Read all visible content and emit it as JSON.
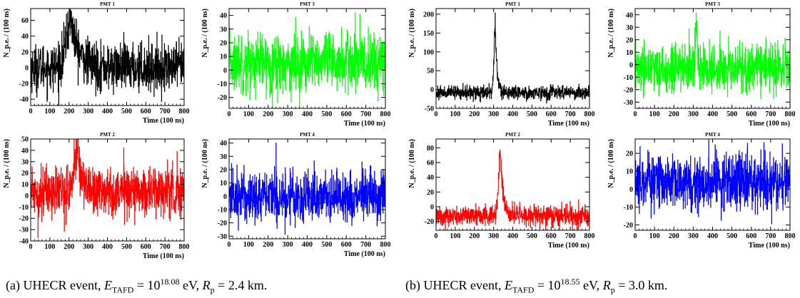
{
  "panels": [
    {
      "title": "PMT 1",
      "ylabel": "N_p.e. / (100 ns)",
      "xlabel": "Time (100 ns)",
      "color": "#000000"
    },
    {
      "title": "PMT 3",
      "ylabel": "N_p.e. / (100 ns)",
      "xlabel": "Time (100 ns)",
      "color": "#00ff00"
    },
    {
      "title": "PMT 2",
      "ylabel": "N_p.e. / (100 ns)",
      "xlabel": "Time (100 ns)",
      "color": "#ff0000"
    },
    {
      "title": "PMT 4",
      "ylabel": "N_p.e. / (100 ns)",
      "xlabel": "Time (100 ns)",
      "color": "#0000ff"
    },
    {
      "title": "PMT 1",
      "ylabel": "N_p.e. / (100 ns)",
      "xlabel": "Time (100 ns)",
      "color": "#000000"
    },
    {
      "title": "PMT 3",
      "ylabel": "N_p.e. / (100 ns)",
      "xlabel": "Time (100 ns)",
      "color": "#00ff00"
    },
    {
      "title": "PMT 2",
      "ylabel": "N_p.e. / (100 ns)",
      "xlabel": "Time (100 ns)",
      "color": "#ff0000"
    },
    {
      "title": "PMT 4",
      "ylabel": "N_p.e. / (100 ns)",
      "xlabel": "Time (100 ns)",
      "color": "#0000ff"
    }
  ],
  "captions": {
    "a": {
      "prefix": "(a)  UHECR event, ",
      "e_sym": "E",
      "e_sub": "TAFD",
      "e_mid": " = 10",
      "e_exp": "18.08",
      "e_unit": " eV, ",
      "r_sym": "R",
      "r_sub": "p",
      "r_val": " = 2.4 km."
    },
    "b": {
      "prefix": "(b)  UHECR event, ",
      "e_sym": "E",
      "e_sub": "TAFD",
      "e_mid": " = 10",
      "e_exp": "18.55",
      "e_unit": " eV, ",
      "r_sym": "R",
      "r_sub": "p",
      "r_val": " = 3.0 km."
    }
  },
  "chart_data": [
    {
      "type": "line",
      "title": "PMT 1",
      "xlabel": "Time (100 ns)",
      "ylabel": "N_p.e. / (100 ns)",
      "xlim": [
        0,
        800
      ],
      "ylim": [
        -48,
        75
      ],
      "x_ticks": [
        0,
        100,
        200,
        300,
        400,
        500,
        600,
        700,
        800
      ],
      "y_ticks": [
        -40,
        -20,
        0,
        20,
        40,
        60
      ],
      "series": [
        {
          "color": "#000000",
          "baseline": 0,
          "noise_sd": 15,
          "peaks": [
            {
              "x": 210,
              "y": 70,
              "width": 25
            }
          ]
        }
      ]
    },
    {
      "type": "line",
      "title": "PMT 3",
      "xlabel": "Time (100 ns)",
      "ylabel": "N_p.e. / (100 ns)",
      "xlim": [
        0,
        800
      ],
      "ylim": [
        -28,
        45
      ],
      "x_ticks": [
        0,
        100,
        200,
        300,
        400,
        500,
        600,
        700,
        800
      ],
      "y_ticks": [
        -20,
        -10,
        0,
        10,
        20,
        30,
        40
      ],
      "series": [
        {
          "color": "#00ff00",
          "baseline": 5,
          "noise_sd": 11,
          "peaks": [
            {
              "x": 645,
              "y": 42,
              "width": 3
            }
          ]
        }
      ]
    },
    {
      "type": "line",
      "title": "PMT 2",
      "xlabel": "Time (100 ns)",
      "ylabel": "N_p.e. / (100 ns)",
      "xlim": [
        0,
        800
      ],
      "ylim": [
        -40,
        50
      ],
      "x_ticks": [
        0,
        100,
        200,
        300,
        400,
        500,
        600,
        700,
        800
      ],
      "y_ticks": [
        -40,
        -30,
        -20,
        -10,
        0,
        10,
        20,
        30,
        40,
        50
      ],
      "series": [
        {
          "color": "#ff0000",
          "baseline": 4,
          "noise_sd": 11,
          "peaks": [
            {
              "x": 240,
              "y": 47,
              "width": 15
            },
            {
              "x": 38,
              "y": -37,
              "width": 2
            }
          ]
        }
      ]
    },
    {
      "type": "line",
      "title": "PMT 4",
      "xlabel": "Time (100 ns)",
      "ylabel": "N_p.e. / (100 ns)",
      "xlim": [
        0,
        800
      ],
      "ylim": [
        -32,
        43
      ],
      "x_ticks": [
        0,
        100,
        200,
        300,
        400,
        500,
        600,
        700,
        800
      ],
      "y_ticks": [
        -30,
        -20,
        -10,
        0,
        10,
        20,
        30,
        40
      ],
      "series": [
        {
          "color": "#0000ff",
          "baseline": 0,
          "noise_sd": 10,
          "peaks": [
            {
              "x": 240,
              "y": 40,
              "width": 3
            }
          ]
        }
      ]
    },
    {
      "type": "line",
      "title": "PMT 1",
      "xlabel": "Time (100 ns)",
      "ylabel": "N_p.e. / (100 ns)",
      "xlim": [
        0,
        800
      ],
      "ylim": [
        -50,
        215
      ],
      "x_ticks": [
        0,
        100,
        200,
        300,
        400,
        500,
        600,
        700,
        800
      ],
      "y_ticks": [
        -50,
        0,
        50,
        100,
        150,
        200
      ],
      "series": [
        {
          "color": "#000000",
          "baseline": -8,
          "noise_sd": 9,
          "peaks": [
            {
              "x": 308,
              "y": 205,
              "width": 6
            }
          ]
        }
      ]
    },
    {
      "type": "line",
      "title": "PMT 3",
      "xlabel": "Time (100 ns)",
      "ylabel": "N_p.e. / (100 ns)",
      "xlim": [
        0,
        800
      ],
      "ylim": [
        -35,
        45
      ],
      "x_ticks": [
        0,
        100,
        200,
        300,
        400,
        500,
        600,
        700,
        800
      ],
      "y_ticks": [
        -30,
        -20,
        -10,
        0,
        10,
        20,
        30,
        40
      ],
      "series": [
        {
          "color": "#00ff00",
          "baseline": -3,
          "noise_sd": 10,
          "peaks": [
            {
              "x": 315,
              "y": 44,
              "width": 4
            }
          ]
        }
      ]
    },
    {
      "type": "line",
      "title": "PMT 2",
      "xlabel": "Time (100 ns)",
      "ylabel": "N_p.e. / (100 ns)",
      "xlim": [
        0,
        800
      ],
      "ylim": [
        -32,
        92
      ],
      "x_ticks": [
        0,
        100,
        200,
        300,
        400,
        500,
        600,
        700,
        800
      ],
      "y_ticks": [
        -20,
        0,
        20,
        40,
        60,
        80
      ],
      "series": [
        {
          "color": "#ff0000",
          "baseline": -12,
          "noise_sd": 7,
          "peaks": [
            {
              "x": 335,
              "y": 90,
              "width": 9
            }
          ]
        }
      ]
    },
    {
      "type": "line",
      "title": "PMT 4",
      "xlabel": "Time (100 ns)",
      "ylabel": "N_p.e. / (100 ns)",
      "xlim": [
        0,
        800
      ],
      "ylim": [
        -23,
        28
      ],
      "x_ticks": [
        0,
        100,
        200,
        300,
        400,
        500,
        600,
        700,
        800
      ],
      "y_ticks": [
        -20,
        -10,
        0,
        10,
        20
      ],
      "series": [
        {
          "color": "#0000ff",
          "baseline": 4,
          "noise_sd": 8,
          "peaks": [
            {
              "x": 665,
              "y": 26,
              "width": 3
            }
          ]
        }
      ]
    }
  ]
}
